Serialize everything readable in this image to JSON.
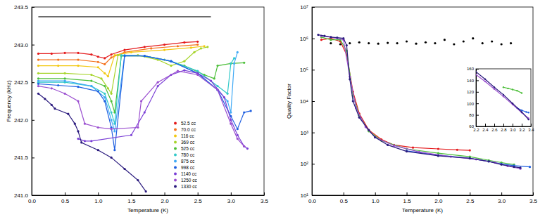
{
  "chart_data": [
    {
      "type": "line",
      "marker": "circle",
      "legend": "lower right",
      "x_label": "Temperature (K)",
      "y_label": "Frequency (kHz)",
      "xlim": [
        0,
        3.5
      ],
      "ylim": [
        241.0,
        243.5
      ],
      "xticks": [
        {
          "value": 0,
          "label": "0.0"
        },
        0.5,
        {
          "value": 1,
          "label": "1.0"
        },
        1.5,
        {
          "value": 2,
          "label": "2.0"
        },
        2.5,
        {
          "value": 3,
          "label": "3.0"
        },
        3.5
      ],
      "yticks": [
        {
          "value": 241,
          "label": "241.0"
        },
        241.5,
        {
          "value": 242,
          "label": "242.0"
        },
        242.5,
        {
          "value": 243,
          "label": "243.0"
        },
        243.5
      ],
      "series": [
        {
          "name": "52.5 cc",
          "color": "#e41a1c",
          "x": [
            0.1,
            0.3,
            0.5,
            0.7,
            0.9,
            1.0,
            1.1,
            1.2,
            1.4,
            1.7,
            2.0,
            2.3,
            2.5
          ],
          "values": [
            242.88,
            242.88,
            242.89,
            242.89,
            242.87,
            242.84,
            242.82,
            242.87,
            242.93,
            242.97,
            243.0,
            243.03,
            243.04
          ]
        },
        {
          "name": "70.0 cc",
          "color": "#f4731f",
          "x": [
            0.1,
            0.4,
            0.7,
            1.0,
            1.1,
            1.2,
            1.4,
            1.8,
            2.2,
            2.5
          ],
          "values": [
            242.8,
            242.8,
            242.8,
            242.77,
            242.74,
            242.83,
            242.9,
            242.95,
            242.98,
            243.0
          ]
        },
        {
          "name": "116 cc",
          "color": "#f2c811",
          "x": [
            0.1,
            0.4,
            0.7,
            1.0,
            1.1,
            1.15,
            1.25,
            1.5,
            2.0,
            2.4,
            2.6
          ],
          "values": [
            242.72,
            242.72,
            242.72,
            242.7,
            242.62,
            242.58,
            242.86,
            242.9,
            242.93,
            242.96,
            242.98
          ]
        },
        {
          "name": "369 cc",
          "color": "#a6d42a",
          "x": [
            0.1,
            0.5,
            0.9,
            1.05,
            1.15,
            1.2,
            1.3,
            1.6,
            1.9,
            2.1,
            2.3,
            2.45,
            2.55,
            2.65
          ],
          "values": [
            242.62,
            242.62,
            242.6,
            242.55,
            242.42,
            242.35,
            242.86,
            242.86,
            242.8,
            242.72,
            242.78,
            242.9,
            242.95,
            242.97
          ]
        },
        {
          "name": "525 cc",
          "color": "#4dbf3a",
          "x": [
            0.1,
            0.5,
            0.9,
            1.1,
            1.2,
            1.25,
            1.35,
            1.7,
            2.0,
            2.3,
            2.6,
            2.75,
            2.8,
            3.0,
            3.2
          ],
          "values": [
            242.55,
            242.55,
            242.52,
            242.45,
            242.25,
            242.1,
            242.85,
            242.85,
            242.8,
            242.72,
            242.6,
            242.55,
            242.72,
            242.75,
            242.76
          ]
        },
        {
          "name": "780 cc",
          "color": "#33c9c9",
          "x": [
            0.1,
            0.5,
            0.9,
            1.1,
            1.2,
            1.25,
            1.35,
            1.7,
            2.1,
            2.5,
            2.8,
            2.95,
            3.0,
            3.05
          ],
          "values": [
            242.5,
            242.5,
            242.45,
            242.35,
            242.1,
            241.95,
            242.86,
            242.85,
            242.78,
            242.65,
            242.45,
            242.35,
            242.75,
            242.82
          ]
        },
        {
          "name": "875 cc",
          "color": "#3fa9f5",
          "x": [
            0.1,
            0.5,
            0.9,
            1.1,
            1.2,
            1.25,
            1.4,
            1.7,
            2.1,
            2.5,
            2.8,
            2.95,
            3.0,
            3.05,
            3.1
          ],
          "values": [
            242.52,
            242.52,
            242.45,
            242.3,
            242.0,
            241.85,
            242.86,
            242.85,
            242.78,
            242.62,
            242.4,
            242.25,
            242.1,
            242.75,
            242.9
          ]
        },
        {
          "name": "998 cc",
          "color": "#1f5fe0",
          "x": [
            0.1,
            0.4,
            0.7,
            1.0,
            1.1,
            1.2,
            1.25,
            1.4,
            1.7,
            2.1,
            2.5,
            2.8,
            3.0,
            3.1,
            3.2,
            3.3
          ],
          "values": [
            242.48,
            242.46,
            242.44,
            242.38,
            242.25,
            241.9,
            241.6,
            242.85,
            242.85,
            242.78,
            242.62,
            242.4,
            242.05,
            241.88,
            242.1,
            242.12
          ]
        },
        {
          "name": "1140 cc",
          "color": "#7a3fd6",
          "x": [
            0.7,
            0.8,
            0.9,
            1.5,
            1.7,
            1.9,
            2.1,
            2.3,
            2.5,
            2.7,
            2.9,
            3.0,
            3.1,
            3.2,
            3.25
          ],
          "values": [
            241.75,
            241.72,
            241.72,
            241.8,
            242.1,
            242.45,
            242.6,
            242.66,
            242.62,
            242.52,
            242.3,
            242.0,
            241.8,
            241.65,
            241.62
          ]
        },
        {
          "name": "1250 cc",
          "color": "#9b4fd0",
          "x": [
            0.1,
            0.3,
            0.5,
            0.7,
            0.8,
            1.0,
            1.2,
            1.6,
            1.65,
            1.9,
            2.2,
            2.5,
            2.8,
            3.0,
            3.1,
            3.2
          ],
          "values": [
            242.45,
            242.42,
            242.35,
            242.25,
            241.95,
            241.9,
            241.88,
            241.9,
            242.25,
            242.5,
            242.65,
            242.6,
            242.4,
            241.95,
            241.75,
            241.65
          ]
        },
        {
          "name": "1330 cc",
          "color": "#2b1b7e",
          "x": [
            0.1,
            0.2,
            0.3,
            0.35,
            0.55,
            0.65,
            0.7,
            0.75,
            1.0,
            1.2,
            1.4,
            1.6,
            1.72
          ],
          "values": [
            242.35,
            242.28,
            242.2,
            242.15,
            242.08,
            241.95,
            241.85,
            241.7,
            241.6,
            241.5,
            241.35,
            241.2,
            241.05
          ]
        },
        {
          "type": "line",
          "marker": "none",
          "color": "#000000",
          "x": [
            0.1,
            2.7
          ],
          "values": [
            243.37,
            243.37
          ]
        }
      ]
    },
    {
      "type": "line",
      "marker": "circle",
      "log": "y",
      "x_label": "Temperature (K)",
      "y_label": "Quality Factor",
      "xlim": [
        0,
        3.5
      ],
      "ylim": [
        10,
        10000000
      ],
      "xticks": [
        {
          "value": 0,
          "label": "0.0"
        },
        0.5,
        {
          "value": 1,
          "label": "1.0"
        },
        1.5,
        {
          "value": 2,
          "label": "2.0"
        },
        2.5,
        {
          "value": 3,
          "label": "3.0"
        },
        3.5
      ],
      "yticks": [
        {
          "value": 10,
          "label": "10¹"
        },
        {
          "value": 100,
          "label": "10²"
        },
        {
          "value": 1000,
          "label": "10³"
        },
        {
          "value": 10000,
          "label": "10⁴"
        },
        {
          "value": 100000,
          "label": "10⁵"
        },
        {
          "value": 1000000,
          "label": "10⁶"
        },
        {
          "value": 10000000,
          "label": "10⁷"
        }
      ],
      "series": [
        {
          "color": "#e41a1c",
          "x": [
            0.15,
            0.3,
            0.45,
            0.55,
            0.65,
            0.75,
            0.9,
            1.1,
            1.3,
            1.6,
            2.0,
            2.3,
            2.5
          ],
          "values": [
            900000,
            1000000,
            800000,
            300000,
            20000,
            4000,
            1200,
            600,
            400,
            330,
            300,
            280,
            270
          ]
        },
        {
          "color": "#4dbf3a",
          "x": [
            0.15,
            0.3,
            0.45,
            0.55,
            0.65,
            0.75,
            0.9,
            1.1,
            1.5,
            2.0,
            2.5,
            2.8,
            3.0,
            3.2
          ],
          "values": [
            1100000,
            900000,
            900000,
            400000,
            15000,
            3500,
            1100,
            550,
            300,
            220,
            170,
            130,
            110,
            95
          ]
        },
        {
          "color": "#1f5fe0",
          "x": [
            1.5,
            2.0,
            2.5,
            2.8,
            3.0,
            3.2,
            3.45
          ],
          "values": [
            260,
            190,
            150,
            120,
            100,
            88,
            80
          ]
        },
        {
          "color": "#9b4fd0",
          "x": [
            0.15,
            0.3,
            0.5,
            0.6,
            0.7,
            0.85,
            1.0,
            1.3,
            1.7,
            2.2,
            2.6,
            2.9,
            3.1,
            3.3
          ],
          "values": [
            1200000,
            1100000,
            900000,
            60000,
            6000,
            1500,
            700,
            380,
            240,
            170,
            140,
            110,
            85,
            70
          ]
        },
        {
          "color": "#2b1b7e",
          "x": [
            0.1,
            0.2,
            0.3,
            0.4,
            0.5,
            0.55,
            0.6,
            0.65,
            0.75,
            0.9,
            1.0,
            1.2,
            1.5,
            2.0,
            2.5,
            2.8,
            3.0,
            3.2,
            3.3
          ],
          "values": [
            1300000,
            1200000,
            1100000,
            1050000,
            1000000,
            600000,
            50000,
            10000,
            3000,
            1200,
            700,
            400,
            250,
            180,
            150,
            120,
            95,
            80,
            75
          ]
        },
        {
          "type": "scatter",
          "color": "#000000",
          "x": [
            0.3,
            0.45,
            0.6,
            0.75,
            0.9,
            1.05,
            1.2,
            1.35,
            1.5,
            1.65,
            1.8,
            1.95,
            2.1,
            2.25,
            2.4,
            2.55,
            2.7,
            2.85,
            3.0,
            3.15
          ],
          "values": [
            700000,
            650000,
            700000,
            750000,
            700000,
            680000,
            720000,
            700000,
            800000,
            680000,
            750000,
            700000,
            900000,
            650000,
            800000,
            1000000,
            700000,
            800000,
            650000,
            700000
          ]
        }
      ]
    },
    {
      "type": "line",
      "marker": "circle",
      "xlim": [
        2.2,
        3.4
      ],
      "ylim": [
        60,
        160
      ],
      "xticks": [
        2.2,
        2.4,
        2.6,
        2.8,
        {
          "value": 3,
          "label": "3.0"
        },
        3.2,
        3.4
      ],
      "yticks": [
        60,
        80,
        100,
        120,
        140,
        160
      ],
      "series": [
        {
          "color": "#4dbf3a",
          "x": [
            2.8,
            2.9,
            3.0,
            3.1,
            3.2
          ],
          "values": [
            128,
            126,
            124,
            122,
            118
          ]
        },
        {
          "color": "#1f5fe0",
          "x": [
            3.1,
            3.2,
            3.3,
            3.35
          ],
          "values": [
            92,
            88,
            85,
            84
          ]
        },
        {
          "color": "#9b4fd0",
          "x": [
            2.2,
            2.4,
            2.6,
            2.8,
            3.0,
            3.2,
            3.35
          ],
          "values": [
            150,
            138,
            125,
            112,
            98,
            84,
            74
          ]
        },
        {
          "color": "#2b1b7e",
          "x": [
            2.2,
            2.4,
            2.6,
            2.8,
            3.0,
            3.2,
            3.35
          ],
          "values": [
            155,
            142,
            128,
            115,
            100,
            85,
            72
          ]
        }
      ]
    }
  ]
}
